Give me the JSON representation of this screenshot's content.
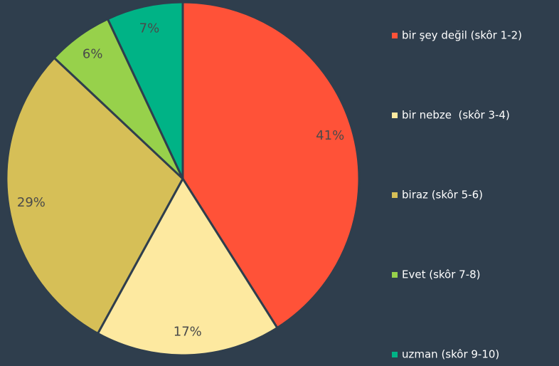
{
  "chart_data": {
    "type": "pie",
    "categories": [
      "bir şey değil (skôr 1-2)",
      "bir nebze  (skôr 3-4)",
      "biraz (skôr 5-6)",
      "Evet (skôr 7-8)",
      "uzman (skôr 9-10)"
    ],
    "values": [
      41,
      17,
      29,
      6,
      7
    ],
    "value_labels": [
      "41%",
      "17%",
      "29%",
      "6%",
      "7%"
    ],
    "colors": [
      "#ff5238",
      "#fde9a0",
      "#d6bf57",
      "#97d14b",
      "#00b386"
    ],
    "legend": "right"
  }
}
